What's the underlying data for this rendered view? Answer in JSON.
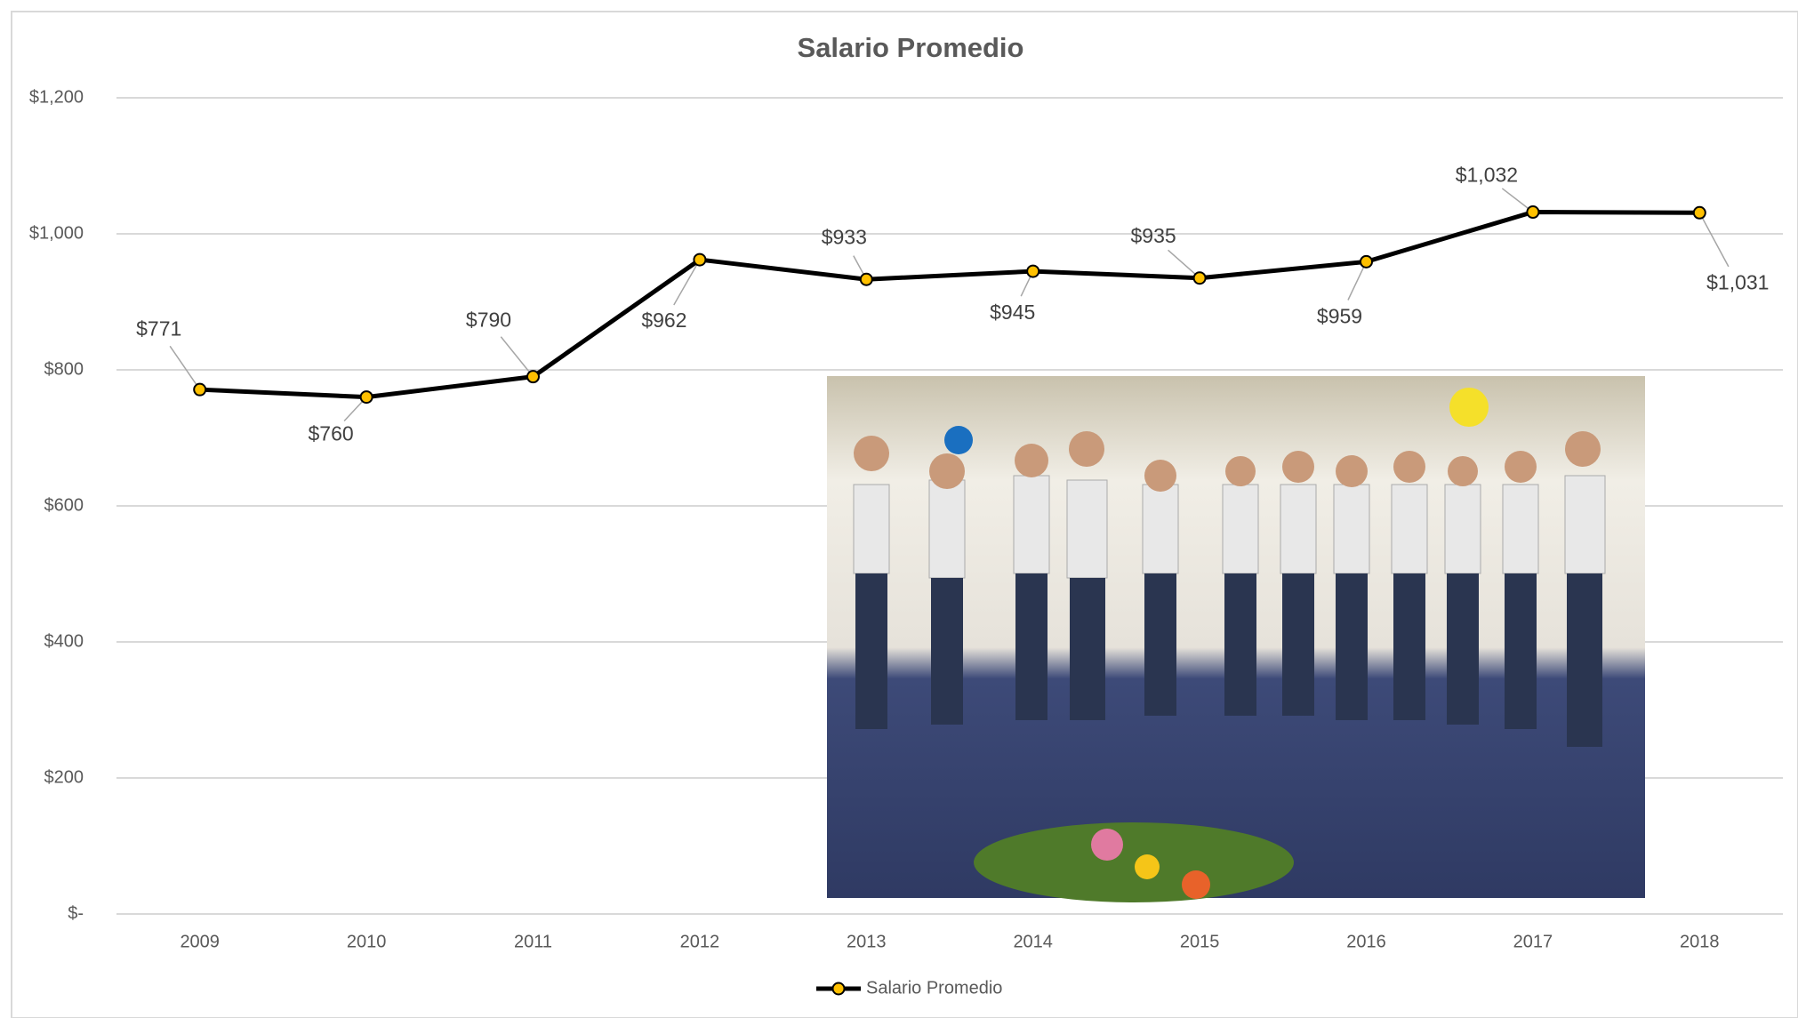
{
  "chart_data": {
    "type": "line",
    "title": "Salario Promedio",
    "categories": [
      "2009",
      "2010",
      "2011",
      "2012",
      "2013",
      "2014",
      "2015",
      "2016",
      "2017",
      "2018"
    ],
    "series": [
      {
        "name": "Salario Promedio",
        "color": "#000000",
        "marker_color": "#ffc000",
        "values": [
          771,
          760,
          790,
          962,
          933,
          945,
          935,
          959,
          1032,
          1031
        ],
        "value_labels": [
          "$771",
          "$760",
          "$790",
          "$962",
          "$933",
          "$945",
          "$935",
          "$959",
          "$1,032",
          "$1,031"
        ]
      }
    ],
    "ylim": [
      0,
      1200
    ],
    "yticks": [
      {
        "value": 0,
        "label": "$-"
      },
      {
        "value": 200,
        "label": "$200"
      },
      {
        "value": 400,
        "label": "$400"
      },
      {
        "value": 600,
        "label": "$600"
      },
      {
        "value": 800,
        "label": "$800"
      },
      {
        "value": 1000,
        "label": "$1,000"
      },
      {
        "value": 1200,
        "label": "$1,200"
      }
    ],
    "grid": true,
    "legend": "bottom"
  }
}
